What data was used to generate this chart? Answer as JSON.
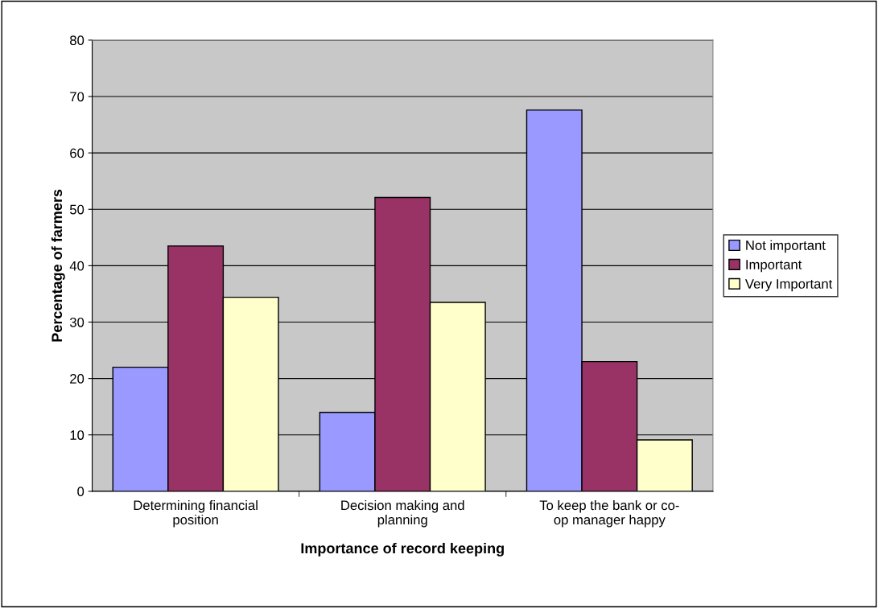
{
  "chart_data": {
    "type": "bar",
    "xlabel": "Importance of record keeping",
    "ylabel": "Percentage of farmers",
    "categories": [
      "Determining financial\nposition",
      "Decision making and\nplanning",
      "To keep the bank or co-\nop manager happy"
    ],
    "series": [
      {
        "name": "Not important",
        "color": "#9999ff",
        "values": [
          22,
          14,
          67.6
        ]
      },
      {
        "name": "Important",
        "color": "#993366",
        "values": [
          43.5,
          52.1,
          23
        ]
      },
      {
        "name": "Very Important",
        "color": "#ffffcc",
        "values": [
          34.4,
          33.5,
          9.1
        ]
      }
    ],
    "ylim": [
      0,
      80
    ],
    "yticks": [
      0,
      10,
      20,
      30,
      40,
      50,
      60,
      70,
      80
    ],
    "grid": "y",
    "legend": "right"
  }
}
